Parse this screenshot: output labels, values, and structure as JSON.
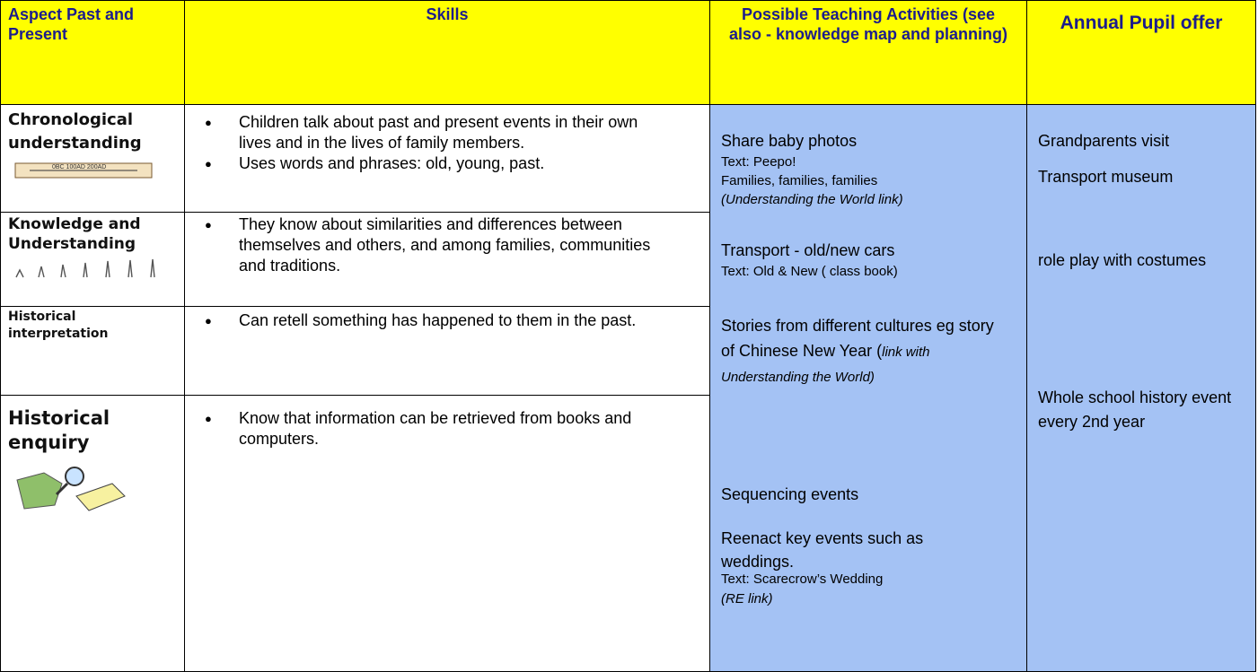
{
  "table": {
    "header": [
      "Aspect Past and Present",
      "Skills",
      "Possible Teaching Activities (see also - knowledge map and planning)",
      "Annual Pupil offer"
    ],
    "rows": [
      {
        "aspect": "Chronological understanding",
        "skills": [
          "Children talk about past and present events in their own lives and in the lives of family members.",
          "Uses words and phrases: old, young, past."
        ]
      },
      {
        "aspect": "Knowledge and Understanding",
        "skills": [
          "They know about similarities and differences between themselves and others, and among families, communities and traditions."
        ]
      },
      {
        "aspect": "Historical interpretation",
        "skills": [
          "Can retell something has happened to them in the past."
        ]
      },
      {
        "aspect": "Historical enquiry",
        "skills": [
          "Know that information can be retrieved from books and computers."
        ]
      }
    ]
  },
  "activities": [
    {
      "title": "Share baby photos",
      "book": "Text: Peepo!",
      "extra": "Families, families, families",
      "note": "(Understanding the World link)"
    },
    {
      "title": "Transport - old/new cars",
      "book": "Text: Old & New ( class book)"
    },
    {
      "title": "Stories from different cultures eg story of Chinese New Year (",
      "note": "link with Understanding the World)"
    },
    {
      "title": "Sequencing events"
    },
    {
      "title": "Reenact key events such as weddings.",
      "book": "Text: Scarecrow’s Wedding",
      "note": "(RE link)"
    }
  ],
  "offers": [
    "Grandparents visit",
    "Transport museum",
    "role play with costumes",
    "Whole school history event every 2nd year"
  ]
}
